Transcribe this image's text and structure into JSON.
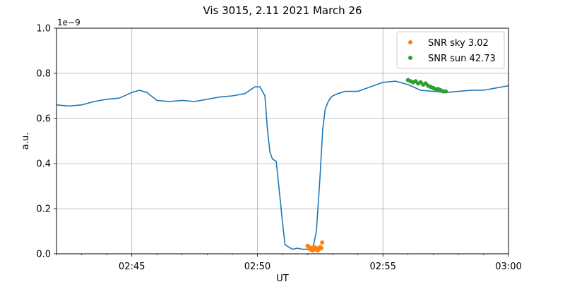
{
  "chart_data": {
    "type": "line",
    "title": "Vis 3015, 2.11 2021 March 26",
    "xlabel": "UT",
    "ylabel": "a.u.",
    "y_offset_label": "1e−9",
    "x_unit": "minutes after 02:42 UT",
    "xlim": [
      0,
      18
    ],
    "ylim": [
      0,
      1.0
    ],
    "grid": true,
    "legend_position": "top-right",
    "x_ticks": [
      {
        "value": 3,
        "label": "02:45"
      },
      {
        "value": 8,
        "label": "02:50"
      },
      {
        "value": 13,
        "label": "02:55"
      },
      {
        "value": 18,
        "label": "03:00"
      }
    ],
    "y_ticks": [
      {
        "value": 0.0,
        "label": "0.0"
      },
      {
        "value": 0.2,
        "label": "0.2"
      },
      {
        "value": 0.4,
        "label": "0.4"
      },
      {
        "value": 0.6,
        "label": "0.6"
      },
      {
        "value": 0.8,
        "label": "0.8"
      },
      {
        "value": 1.0,
        "label": "1.0"
      }
    ],
    "series": [
      {
        "name": "",
        "kind": "line",
        "color": "#1f77b4",
        "x": [
          0,
          0.5,
          1.0,
          1.5,
          2.0,
          2.5,
          3.0,
          3.3,
          3.6,
          4.0,
          4.5,
          5.0,
          5.5,
          6.0,
          6.5,
          7.0,
          7.5,
          7.9,
          8.1,
          8.3,
          8.4,
          8.5,
          8.6,
          8.75,
          8.9,
          9.0,
          9.1,
          9.25,
          9.4,
          9.6,
          9.8,
          10.0,
          10.2,
          10.35,
          10.5,
          10.6,
          10.7,
          10.8,
          10.9,
          11.0,
          11.2,
          11.5,
          12.0,
          12.5,
          13.0,
          13.5,
          14.0,
          14.5,
          15.0,
          15.5,
          16.0,
          16.5,
          17.0,
          17.5,
          18.0
        ],
        "y": [
          0.66,
          0.655,
          0.66,
          0.675,
          0.685,
          0.69,
          0.715,
          0.725,
          0.715,
          0.68,
          0.675,
          0.68,
          0.675,
          0.685,
          0.695,
          0.7,
          0.71,
          0.74,
          0.74,
          0.7,
          0.55,
          0.45,
          0.42,
          0.41,
          0.25,
          0.14,
          0.04,
          0.03,
          0.02,
          0.025,
          0.02,
          0.02,
          0.02,
          0.1,
          0.35,
          0.55,
          0.64,
          0.67,
          0.69,
          0.7,
          0.71,
          0.72,
          0.72,
          0.74,
          0.76,
          0.765,
          0.75,
          0.725,
          0.72,
          0.715,
          0.72,
          0.725,
          0.725,
          0.735,
          0.745
        ]
      },
      {
        "name": "SNR sky 3.02",
        "kind": "scatter",
        "color": "#ff7f0e",
        "x": [
          10.0,
          10.05,
          10.1,
          10.15,
          10.2,
          10.25,
          10.3,
          10.35,
          10.4,
          10.45,
          10.5,
          10.55,
          10.58
        ],
        "y": [
          0.035,
          0.03,
          0.02,
          0.025,
          0.015,
          0.03,
          0.02,
          0.025,
          0.015,
          0.02,
          0.03,
          0.025,
          0.05
        ]
      },
      {
        "name": "SNR sun 42.73",
        "kind": "scatter",
        "color": "#2ca02c",
        "x": [
          14.0,
          14.1,
          14.2,
          14.3,
          14.4,
          14.5,
          14.6,
          14.7,
          14.8,
          14.9,
          15.0,
          15.1,
          15.2,
          15.3,
          15.4,
          15.5
        ],
        "y": [
          0.77,
          0.765,
          0.76,
          0.765,
          0.755,
          0.76,
          0.75,
          0.755,
          0.745,
          0.74,
          0.735,
          0.73,
          0.73,
          0.725,
          0.72,
          0.72
        ]
      }
    ]
  }
}
